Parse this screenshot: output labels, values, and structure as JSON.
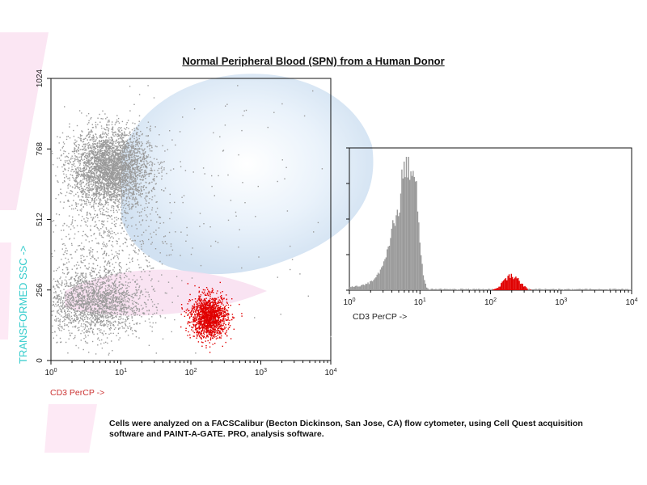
{
  "title": "Normal Peripheral Blood (SPN) from a Human Donor",
  "caption": "Cells were analyzed on a FACSCalibur (Becton Dickinson, San Jose, CA) flow cytometer, using Cell Quest acquisition software and PAINT-A-GATE. PRO, analysis software.",
  "colors": {
    "ungated": "#9a9a9a",
    "cd3_positive": "#e00000",
    "ssc_label": "#33cccc",
    "cd3_label": "#cc3333"
  },
  "chart_data": [
    {
      "type": "scatter",
      "xlabel": "CD3 PerCP ->",
      "ylabel": "TRANSFORMED SSC ->",
      "x_scale": "log",
      "xlim": [
        1,
        10000
      ],
      "ylim": [
        0,
        1024
      ],
      "x_ticks": [
        "10^0",
        "10^1",
        "10^2",
        "10^3",
        "10^4"
      ],
      "y_ticks": [
        "0",
        "256",
        "512",
        "768",
        "1024"
      ],
      "populations": [
        {
          "name": "",
          "color": "#9a9a9a",
          "x_center": 7,
          "x_spread_decades": 0.28,
          "y_center": 700,
          "y_spread": 70,
          "n": 3500
        },
        {
          "name": "",
          "color": "#9a9a9a",
          "x_center": 4,
          "x_spread_decades": 0.35,
          "y_center": 210,
          "y_spread": 60,
          "n": 1800
        },
        {
          "name": "",
          "color": "#9a9a9a",
          "x_center": 6,
          "x_spread_decades": 0.45,
          "y_center": 420,
          "y_spread": 130,
          "n": 700
        },
        {
          "name": "",
          "color": "#e00000",
          "x_center": 180,
          "x_spread_decades": 0.13,
          "y_center": 160,
          "y_spread": 38,
          "n": 1500
        },
        {
          "name": "",
          "color": "#9a9a9a",
          "x_center": 100,
          "x_spread_decades": 1.1,
          "y_center": 600,
          "y_spread": 280,
          "n": 140
        }
      ]
    },
    {
      "type": "histogram",
      "xlabel": "CD3 PerCP ->",
      "x_scale": "log",
      "xlim": [
        1,
        10000
      ],
      "x_ticks": [
        "10^0",
        "10^1",
        "10^2",
        "10^3",
        "10^4"
      ],
      "peaks": [
        {
          "name": "",
          "color": "#9a9a9a",
          "center": 8,
          "relative_height": 1.0
        },
        {
          "name": "",
          "color": "#e00000",
          "center": 200,
          "relative_height": 0.11
        }
      ]
    }
  ]
}
